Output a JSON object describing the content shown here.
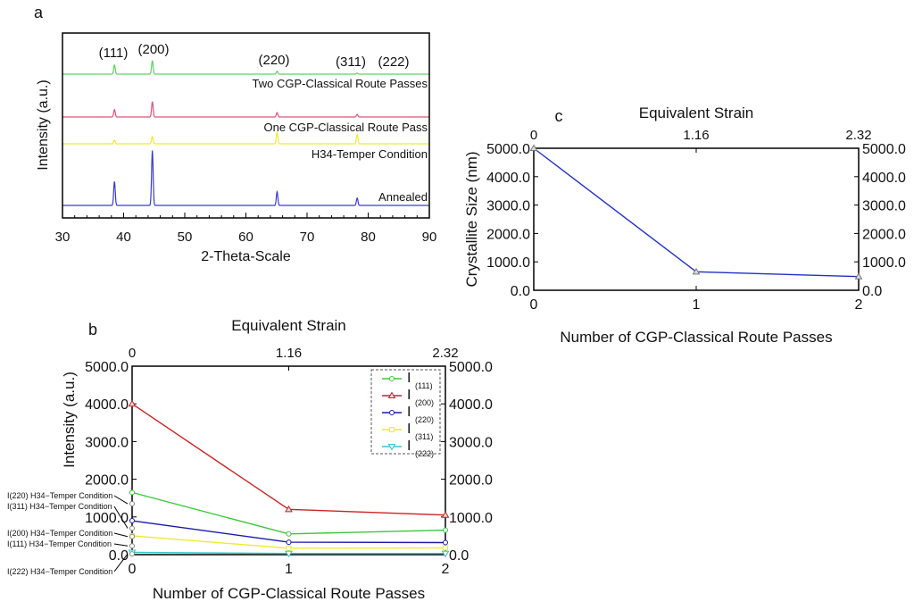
{
  "chart_data": [
    {
      "panel": "a",
      "type": "line",
      "xlabel": "2-Theta-Scale",
      "ylabel": "Intensity (a.u.)",
      "xlim": [
        30,
        90
      ],
      "xticks": [
        30,
        40,
        50,
        60,
        70,
        80,
        90
      ],
      "peak_positions": [
        38.5,
        44.7,
        65.1,
        78.2,
        82.4
      ],
      "peak_labels": [
        "(111)",
        "(200)",
        "(220)",
        "(311)",
        "(222)"
      ],
      "series": [
        {
          "name": "Two CGP-Classical Route Passes",
          "color": "#5fd35f",
          "offset": 3.0,
          "peaks": [
            0.25,
            0.37,
            0.08,
            0.03,
            0
          ]
        },
        {
          "name": "One CGP-Classical Route Pass",
          "color": "#e0507a",
          "offset": 1.85,
          "peaks": [
            0.2,
            0.42,
            0.12,
            0.07,
            0
          ]
        },
        {
          "name": "H34-Temper Condition",
          "color": "#f0ea30",
          "offset": 1.2,
          "peaks": [
            0.1,
            0.2,
            0.3,
            0.25,
            0
          ]
        },
        {
          "name": "Annealed",
          "color": "#3a3ad0",
          "offset": 0,
          "peaks": [
            0.65,
            1.5,
            0.37,
            0.2,
            0
          ]
        }
      ]
    },
    {
      "panel": "b",
      "type": "line",
      "title": "Equivalent Strain",
      "xlabel": "Number of CGP-Classical Route Passes",
      "ylabel": "Intensity (a.u.)",
      "x": [
        0,
        1,
        2
      ],
      "top_ticks": [
        "0",
        "1.16",
        "2.32"
      ],
      "yticks": [
        "0.0",
        "1000.0",
        "2000.0",
        "3000.0",
        "4000.0",
        "5000.0"
      ],
      "ylim": [
        0,
        5000
      ],
      "legend": "top-right",
      "series": [
        {
          "name": "I",
          "sub": "(111)",
          "color": "#3cc83c",
          "marker": "circle",
          "values": [
            1650,
            550,
            650
          ]
        },
        {
          "name": "I",
          "sub": "(200)",
          "color": "#d02020",
          "marker": "triangle",
          "values": [
            4000,
            1200,
            1050
          ]
        },
        {
          "name": "I",
          "sub": "(220)",
          "color": "#1a1ab0",
          "marker": "circle",
          "values": [
            900,
            330,
            320
          ]
        },
        {
          "name": "I",
          "sub": "(311)",
          "color": "#f0ea30",
          "marker": "square",
          "values": [
            500,
            170,
            180
          ]
        },
        {
          "name": "I",
          "sub": "(222)",
          "color": "#30c8c8",
          "marker": "triangle-down",
          "values": [
            60,
            30,
            30
          ]
        }
      ],
      "annotations": [
        {
          "text": "I(220) H34−Temper Condition",
          "value": 1350
        },
        {
          "text": "I(311) H34−Temper Condition",
          "value": 700
        },
        {
          "text": "I(200) H34−Temper Condition",
          "value": 480
        },
        {
          "text": "I(111) H34−Temper Condition",
          "value": 230
        },
        {
          "text": "I(222) H34−Temper Condition",
          "value": 20
        }
      ]
    },
    {
      "panel": "c",
      "type": "line",
      "title": "Equivalent Strain",
      "xlabel": "Number of CGP-Classical Route Passes",
      "ylabel": "Crystallite Size (nm)",
      "x": [
        0,
        1,
        2
      ],
      "top_ticks": [
        "0",
        "1.16",
        "2.32"
      ],
      "yticks": [
        "0.0",
        "1000.0",
        "2000.0",
        "3000.0",
        "4000.0",
        "5000.0"
      ],
      "ylim": [
        0,
        5000
      ],
      "series": [
        {
          "name": "Crystallite Size",
          "color": "#2030c8",
          "marker": "triangle",
          "values": [
            5000,
            650,
            480
          ]
        }
      ]
    }
  ]
}
